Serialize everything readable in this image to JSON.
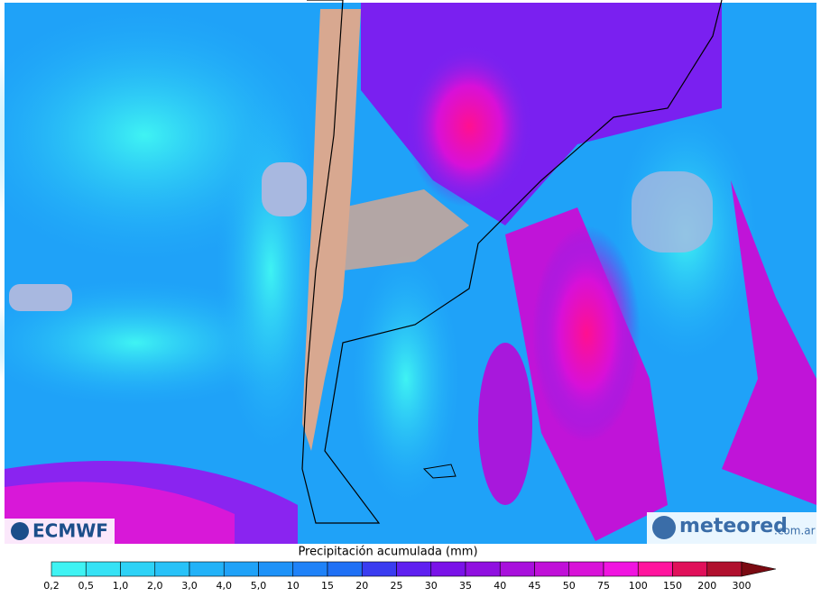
{
  "logos": {
    "left": "ECMWF",
    "right": {
      "name": "meteored",
      "domain": ".com.ar"
    }
  },
  "legend": {
    "title": "Precipitación acumulada (mm)",
    "ticks": [
      {
        "value": 0.2,
        "label": "0,2"
      },
      {
        "value": 0.5,
        "label": "0,5"
      },
      {
        "value": 1,
        "label": "1,0"
      },
      {
        "value": 2,
        "label": "2,0"
      },
      {
        "value": 3,
        "label": "3,0"
      },
      {
        "value": 4,
        "label": "4,0"
      },
      {
        "value": 5,
        "label": "5,0"
      },
      10,
      15,
      20,
      25,
      30,
      35,
      40,
      45,
      50,
      75,
      100,
      150,
      200,
      300
    ],
    "colors": [
      "#3ff3f3",
      "#36e2f5",
      "#2ed2f6",
      "#28c2f8",
      "#22b2f8",
      "#1fa2f8",
      "#1e92f8",
      "#1f82f8",
      "#1f70f5",
      "#3a3cf0",
      "#5f20f0",
      "#7a12e8",
      "#9010e0",
      "#a810dc",
      "#c010d8",
      "#d812d8",
      "#f014e0",
      "#ff149e",
      "#e0105a",
      "#b0102e"
    ],
    "extend_color": "#7a0a12"
  }
}
